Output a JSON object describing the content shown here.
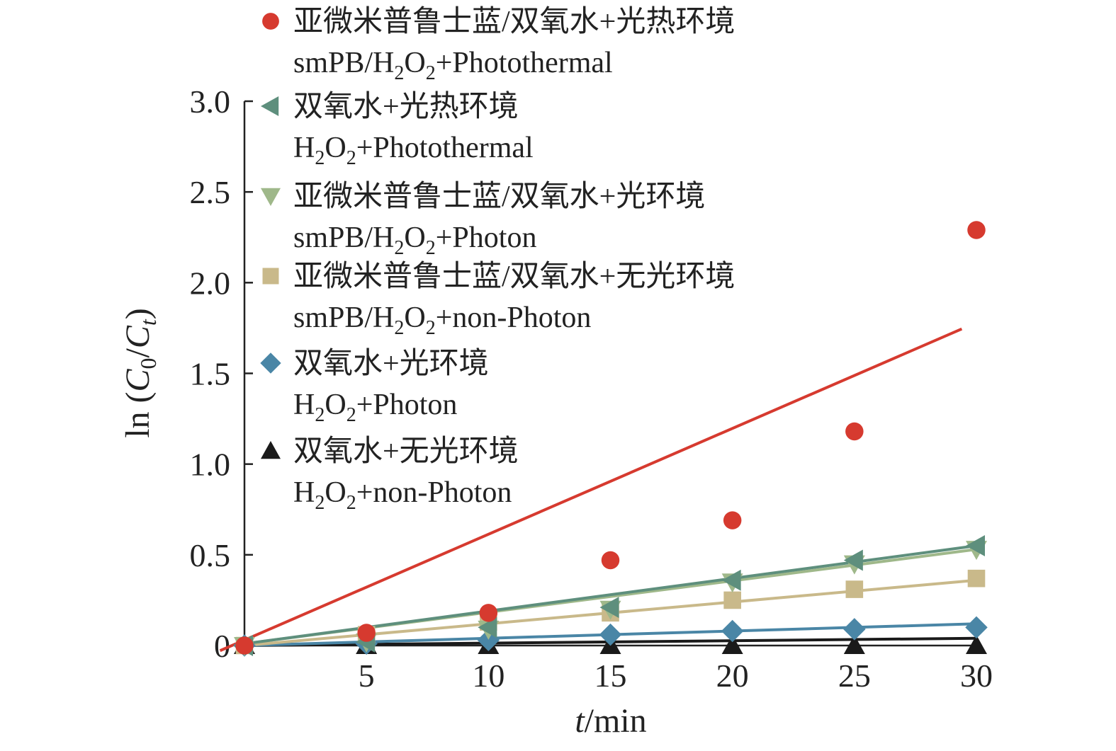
{
  "chart_data": {
    "type": "scatter",
    "xlabel": {
      "italic": "t",
      "rest": "/min"
    },
    "ylabel": {
      "prefix": "ln (",
      "c0": "C",
      "sub0": "0",
      "slash": "/",
      "ct": "C",
      "subt": "t",
      "suffix": ")"
    },
    "xlim": [
      0,
      30
    ],
    "ylim": [
      0,
      3.0
    ],
    "x_ticks": [
      "5",
      "10",
      "15",
      "20",
      "25",
      "30"
    ],
    "y_ticks": [
      "0",
      "0.5",
      "1.0",
      "1.5",
      "2.0",
      "2.5",
      "3.0"
    ],
    "grid": false,
    "legend_position": "top",
    "x": [
      0,
      5,
      10,
      15,
      20,
      25,
      30
    ],
    "series": [
      {
        "legend_cn": "亚微米普鲁士蓝/双氧水+光热环境",
        "legend_en": {
          "pre": "smPB/H",
          "s1": "2",
          "mid": "O",
          "s2": "2",
          "post": "+Photothermal"
        },
        "marker": "circle",
        "color": "#d63a2f",
        "values": [
          0,
          0.07,
          0.18,
          0.47,
          0.69,
          1.18,
          2.29
        ],
        "fit": [
          0.03,
          1.78
        ]
      },
      {
        "legend_cn": "双氧水+光热环境",
        "legend_en": {
          "pre": "H",
          "s1": "2",
          "mid": "O",
          "s2": "2",
          "post": "+Photothermal"
        },
        "marker": "triangle-left",
        "color": "#5e8f7d",
        "values": [
          0,
          0.02,
          0.1,
          0.21,
          0.36,
          0.47,
          0.55
        ],
        "fit": [
          0.01,
          0.55
        ]
      },
      {
        "legend_cn": "亚微米普鲁士蓝/双氧水+光环境",
        "legend_en": {
          "pre": "smPB/H",
          "s1": "2",
          "mid": "O",
          "s2": "2",
          "post": "+Photon"
        },
        "marker": "triangle-down",
        "color": "#9fb88a",
        "values": [
          0,
          0.02,
          0.09,
          0.2,
          0.35,
          0.45,
          0.53
        ],
        "fit": [
          0.01,
          0.53
        ]
      },
      {
        "legend_cn": "亚微米普鲁士蓝/双氧水+无光环境",
        "legend_en": {
          "pre": "smPB/H",
          "s1": "2",
          "mid": "O",
          "s2": "2",
          "post": "+non-Photon"
        },
        "marker": "square",
        "color": "#c9b98a",
        "values": [
          0,
          0.06,
          0.13,
          0.18,
          0.25,
          0.31,
          0.37
        ],
        "fit": [
          0.0,
          0.36
        ]
      },
      {
        "legend_cn": "双氧水+光环境",
        "legend_en": {
          "pre": "H",
          "s1": "2",
          "mid": "O",
          "s2": "2",
          "post": "+Photon"
        },
        "marker": "diamond",
        "color": "#4a86a6",
        "values": [
          0,
          0.01,
          0.03,
          0.06,
          0.08,
          0.09,
          0.1
        ],
        "fit": [
          0.0,
          0.12
        ]
      },
      {
        "legend_cn": "双氧水+无光环境",
        "legend_en": {
          "pre": "H",
          "s1": "2",
          "mid": "O",
          "s2": "2",
          "post": "+non-Photon"
        },
        "marker": "triangle-up",
        "color": "#1a1a1a",
        "values": [
          0,
          0.0,
          0.0,
          0.0,
          0.0,
          0.0,
          0.0
        ],
        "fit": [
          0.0,
          0.04
        ]
      }
    ]
  }
}
